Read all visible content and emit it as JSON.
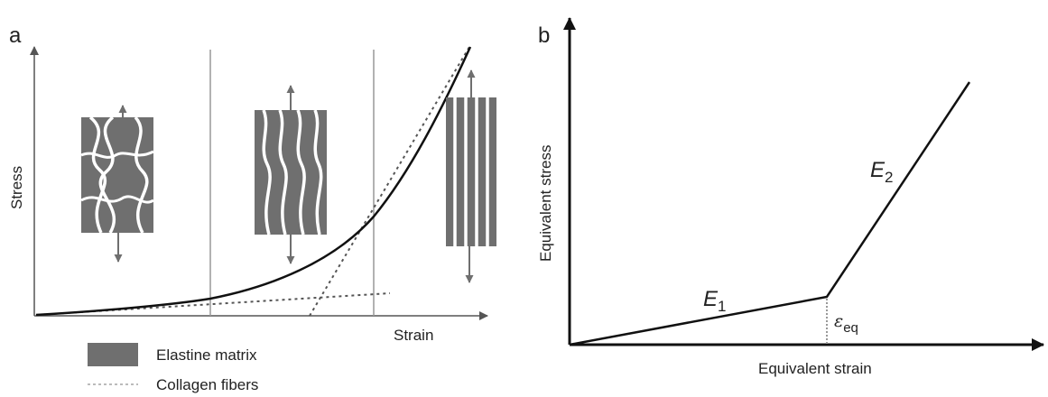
{
  "panel_a": {
    "letter": "a",
    "ylabel": "Stress",
    "xlabel": "Strain",
    "legend": [
      {
        "label": "Elastine matrix",
        "swatch": "rect",
        "color": "#6f6f6f"
      },
      {
        "label": "Collagen fibers",
        "swatch": "dots",
        "color": "#bbbbbb"
      }
    ],
    "insets": [
      {
        "stage": "crimped collagen fibers in elastin matrix"
      },
      {
        "stage": "collagen fibers straightening"
      },
      {
        "stage": "collagen fibers fully aligned"
      }
    ]
  },
  "panel_b": {
    "letter": "b",
    "ylabel": "Equivalent stress",
    "xlabel": "Equivalent strain",
    "e1": {
      "symbol": "E",
      "sub": "1"
    },
    "e2": {
      "symbol": "E",
      "sub": "2"
    },
    "eps": {
      "symbol": "ε",
      "sub": "eq"
    }
  },
  "colors": {
    "line": "#111111",
    "axis": "#555555",
    "divider": "#999999",
    "matrix": "#6f6f6f",
    "fiber": "#ffffff",
    "dotted": "#555555"
  }
}
